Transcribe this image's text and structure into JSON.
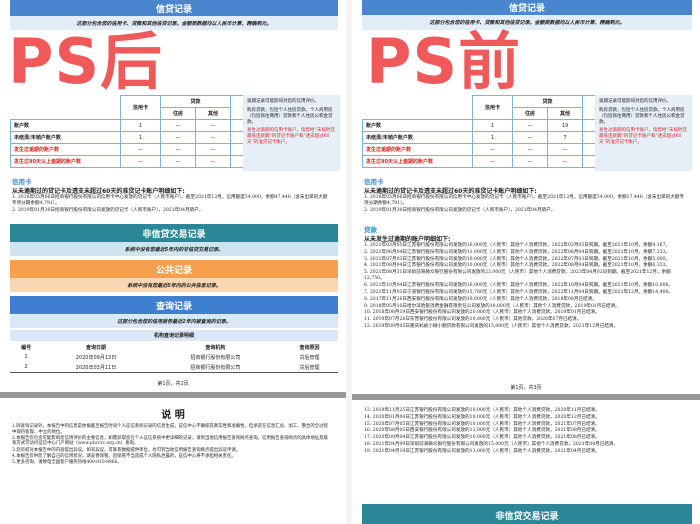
{
  "overlays": {
    "after": "PS后",
    "before": "PS前"
  },
  "colors": {
    "credit_blue": "#4a86d0",
    "teal": "#2b8797",
    "orange": "#f5a04e",
    "query_blue": "#3f7fcf",
    "overlay_red": "#ef4b4b"
  },
  "left": {
    "credit_title": "信贷记录",
    "credit_sub": "这部分包含您的信用卡、贷款和其他信贷记录。金额类数据均以人民币计算，精确到元。",
    "table": {
      "h_card": "信用卡",
      "h_loan": "贷款",
      "h_house": "住房",
      "h_other": "其他",
      "h_biz": "其他业务",
      "rows": [
        {
          "label": "账户数",
          "v": [
            "1",
            "—",
            "—",
            "—"
          ],
          "red": false
        },
        {
          "label": "未结清/未销户账户数",
          "v": [
            "1",
            "—",
            "—",
            "—"
          ],
          "red": false
        },
        {
          "label": "发生过逾期的账户数",
          "v": [
            "—",
            "—",
            "—",
            "—"
          ],
          "red": true
        },
        {
          "label": "发生过90天以上逾期的账户数",
          "v": [
            "—",
            "—",
            "—",
            "—"
          ],
          "red": true
        }
      ]
    },
    "notes": [
      "逾期记录可能影响对您的信用评价。",
      "购房贷款，包括个人住房贷款、个人商用房（包括商住两用）贷款和个人住房公积金贷款。",
      "发生过逾期的信用卡账户，指曾经“未按时还最低还款额”的贷记卡账户和“透支超过60天”的准贷记卡账户。"
    ],
    "card_head": "信用卡",
    "card_bold": "从未逾期过的贷记卡及透支未超过60天的准贷记卡账户明细如下:",
    "card_items": [
      "1. 2016年05月06日招商银行股份有限公司信用卡中心发放的贷记卡（人民币账户）。截至2021年12月，信用额度54,000，余额47,446（含未出单的大额专项分期余额4,791）。",
      "2. 2019年01月30日招商银行股份有限公司发放的贷记卡（人民币账户），2021年04月销户。"
    ],
    "noncredit_title": "非信贷交易记录",
    "noncredit_sub": "系统中没有您最近5年内的非信贷交易记录。",
    "public_title": "公共记录",
    "public_sub": "系统中没有您最近5年内的公共信息记录。",
    "query_title": "查询记录",
    "query_sub": "这部分包含您的信用报告最近2年内被查询的记录。",
    "query_detail": "机构查询记录明细",
    "query_headers": [
      "编号",
      "查询日期",
      "查询机构",
      "查询原因"
    ],
    "query_rows": [
      [
        "1",
        "2020年09月13日",
        "招商银行股份有限公司",
        "贷后管理"
      ],
      [
        "2",
        "2020年03月11日",
        "招商银行股份有限公司",
        "贷后管理"
      ]
    ],
    "footer": "第1页，共2页",
    "notice_title": "说 明",
    "notice": [
      "1.除查询记录外，本报告中的信息是依据截至报告时间个人征信系统记录的信息生成，征信中心不确保其真实性和准确性，但承诺在信息汇总、加工、整合的全过程中保持客观、中立的地位。",
      "2.本报告仅包含可能影响您信用评价的主要信息，如需获取您在个人征信系统中更详细的记录，请到当地信用报告查询网点查询。信用报告查询网点的具体地址及联系方式可访问征信中心门户网站（www.pbccrc.org.cn）查询。",
      "3.您有权对本报告中的内容提出异议。如有异议，可联系数据提供单位，也可到当地信用报告查询网点提出异议申请。",
      "4.本报告仅供您了解自己的信用状况，请妥善保管。因保管不当造成个人隐私泄露的，征信中心将不承担相关责任。",
      "5.更多咨询，请致电全国客户服务热线400-810-8866。"
    ]
  },
  "right": {
    "credit_title": "信贷记录",
    "credit_sub": "这部分包含您的信用卡、贷款和其他信贷记录。金额类数据均以人民币计算，精确到元。",
    "table": {
      "rows": [
        {
          "label": "账户数",
          "v": [
            "1",
            "—",
            "19",
            "—"
          ],
          "red": false
        },
        {
          "label": "未结清/未销户账户数",
          "v": [
            "1",
            "—",
            "7",
            "—"
          ],
          "red": false
        },
        {
          "label": "发生过逾期的账户数",
          "v": [
            "—",
            "—",
            "—",
            "—"
          ],
          "red": true
        },
        {
          "label": "发生过90天以上逾期的账户数",
          "v": [
            "—",
            "—",
            "—",
            "—"
          ],
          "red": true
        }
      ]
    },
    "card_head": "信用卡",
    "card_bold": "从未逾期过的贷记卡及透支未超过60天的准贷记卡账户明细如下:",
    "card_items": [
      "1. 2016年05月06日招商银行股份有限公司信用卡中心发放的贷记卡（人民币账户）。截至2021年12月，信用额度54,000，余额17,446（含未出单的大额专项分期余额4,791）。",
      "2. 2019年01月30日招商银行股份有限公司发放的贷记卡（人民币账户），2021年04月销户。"
    ],
    "loan_head": "贷款",
    "loan_bold": "从未发生过逾期的账户明细如下:",
    "loan_items": [
      "1. 2021年03月05日江苏银行股份有限公司发放的10,000元（人民币）其他个人消费贷款，2022年03月05日到期。截至2021年10月，余额4,167。",
      "2. 2021年06月04日江苏银行股份有限公司发放的11,000元（人民币）其他个人消费贷款，2022年06月04日到期。截至2021年10月，余额7,333。",
      "3. 2021年07月03日江苏银行股份有限公司发放的10,000元（人民币）其他个人消费贷款，2022年07月03日到期。截至2021年10月，余额5,000。",
      "4. 2021年08月04日江苏银行股份有限公司发放的10,000元（人民币）其他个人消费贷款，2022年08月04日到期。截至2021年10月，余额6,333。",
      "5. 2021年08月31日深圳前海微众银行股份有限公司发放的23,000元（人民币）其他个人消费贷款，2023年04月02日到期。截至2021年12月，余额12,750。",
      "6. 2021年10月04日江苏银行股份有限公司发放的10,000元（人民币）其他个人消费贷款，2022年10月04日到期。截至2021年10月，余额10,000。",
      "7. 2021年11月03日宁波银行股份有限公司发放的15,700元（人民币）其他个人消费贷款，2022年11月04日到期。截至2021年12月，余额14,400。",
      "8. 2017年11月26日西安银行股份有限公司发放的10,000元（人民币）其他个人消费贷款，2018年08月已结清。",
      "9. 2018年05月10日哈尔滨哈银消费金融有限责任公司发放的10,000元（人民币）其他个人消费贷款，2019年01月已结清。",
      "10. 2018年08月19日西安银行股份有限公司发放的20,000元（人民币）其他个人消费贷款，2019年01月已结清。",
      "11. 2019年07月28日东营银行股份有限公司发放的10,000元（人民币）其他贷款，2020年07月已结清。",
      "12. 2019年09月05日重庆蚂蚁小微小额贷款有限公司发放的15,000元（人民币）其他个人消费贷款，2021年12月已结清。"
    ],
    "footer": "第1页，共3页",
    "loan_items_2": [
      "13. 2019年11月25日江苏银行股份有限公司发放的10,000元（人民币）其他个人消费贷款，2020年11月已结清。",
      "14. 2020年01月04日江苏银行股份有限公司发放的10,000元（人民币）其他个人消费贷款，2020年12月已结清。",
      "15. 2020年07月05日江苏银行股份有限公司发放的10,000元（人民币）其他个人消费贷款，2021年07月已结清。",
      "16. 2020年08月05日西安银行股份有限公司发放的12,000元（人民币）其他个人消费贷款，2021年08月已结清。",
      "17. 2020年09月04日江苏银行股份有限公司发放的10,000元（人民币）其他个人消费贷款，2021年08月已结清。",
      "18. 2021年04月09日深圳前海微众银行股份有限公司发放的15,000元（人民币）其他个人消费贷款，2021年04月已结清。",
      "19. 2021年04月19日江苏银行股份有限公司发放的13,000元（人民币）其他个人消费贷款，2021年04月已结清。"
    ],
    "noncredit_title": "非信贷交易记录"
  }
}
